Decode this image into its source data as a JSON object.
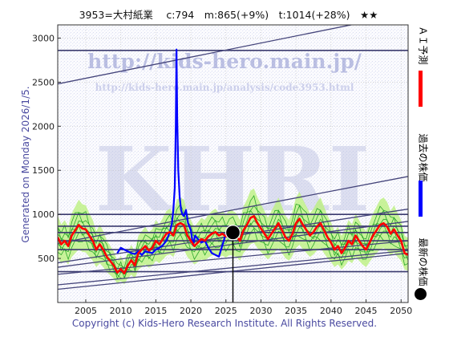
{
  "header": {
    "title": "3953=大村紙業　 c:794　m:865(+9%)　t:1014(+28%)　★★"
  },
  "side_text": "Generated on Monday 2026/1/5.",
  "footer": {
    "copyright": "Copyright (c) Kids-Hero Research Institute. All Rights Reserved."
  },
  "watermark": {
    "url": "http://kids-hero.main.jp/",
    "analysis_url": "http://kids-hero.main.jp/analysis/code3953.html",
    "logo": "KHRI"
  },
  "legend": [
    {
      "label": "ＡＩ予測",
      "color": "#ff0000",
      "marker": "line"
    },
    {
      "label": "過去の株価",
      "color": "#0000ff",
      "marker": "line"
    },
    {
      "label": "最新の株価",
      "color": "#000000",
      "marker": "dot"
    }
  ],
  "chart_data": {
    "type": "line",
    "xlim": [
      2001,
      2051
    ],
    "ylim": [
      0,
      3150
    ],
    "x_ticks": [
      2005,
      2010,
      2015,
      2020,
      2025,
      2030,
      2035,
      2040,
      2045,
      2050
    ],
    "y_ticks": [
      500,
      1000,
      1500,
      2000,
      2500,
      3000
    ],
    "grid": true,
    "latest": {
      "x": 2026.0,
      "y": 794
    },
    "horizontal_lines": [
      2860,
      1000,
      865,
      794,
      700,
      600,
      350
    ],
    "trend_lines": [
      {
        "x0": 2001,
        "y0": 2480,
        "x1": 2051,
        "y1": 3280
      },
      {
        "x0": 2001,
        "y0": 670,
        "x1": 2051,
        "y1": 1430
      },
      {
        "x0": 2001,
        "y0": 450,
        "x1": 2051,
        "y1": 1060
      },
      {
        "x0": 2001,
        "y0": 400,
        "x1": 2051,
        "y1": 920
      },
      {
        "x0": 2001,
        "y0": 320,
        "x1": 2051,
        "y1": 700
      },
      {
        "x0": 2001,
        "y0": 200,
        "x1": 2051,
        "y1": 590
      },
      {
        "x0": 2001,
        "y0": 150,
        "x1": 2051,
        "y1": 560
      }
    ],
    "series": [
      {
        "name": "過去の株価",
        "color": "#0000ff",
        "points": [
          [
            2009.5,
            560
          ],
          [
            2010,
            620
          ],
          [
            2010.5,
            600
          ],
          [
            2011,
            580
          ],
          [
            2011.5,
            560
          ],
          [
            2012,
            550
          ],
          [
            2012.5,
            580
          ],
          [
            2013,
            540
          ],
          [
            2013.5,
            580
          ],
          [
            2014,
            570
          ],
          [
            2014.5,
            560
          ],
          [
            2015,
            600
          ],
          [
            2015.5,
            620
          ],
          [
            2016,
            650
          ],
          [
            2016.5,
            700
          ],
          [
            2017,
            800
          ],
          [
            2017.3,
            900
          ],
          [
            2017.5,
            1050
          ],
          [
            2017.7,
            1300
          ],
          [
            2017.85,
            2000
          ],
          [
            2017.95,
            2870
          ],
          [
            2018.05,
            2100
          ],
          [
            2018.2,
            1500
          ],
          [
            2018.4,
            1200
          ],
          [
            2018.6,
            1050
          ],
          [
            2018.8,
            1000
          ],
          [
            2019,
            980
          ],
          [
            2019.3,
            1050
          ],
          [
            2019.6,
            900
          ],
          [
            2020,
            820
          ],
          [
            2020.3,
            650
          ],
          [
            2020.6,
            760
          ],
          [
            2021,
            720
          ],
          [
            2021.5,
            680
          ],
          [
            2022,
            700
          ],
          [
            2022.5,
            620
          ],
          [
            2023,
            560
          ],
          [
            2023.5,
            540
          ],
          [
            2024,
            520
          ],
          [
            2024.5,
            650
          ],
          [
            2025,
            780
          ],
          [
            2025.5,
            760
          ],
          [
            2026,
            794
          ]
        ]
      },
      {
        "name": "ＡＩ予測",
        "color": "#ff0000",
        "points": [
          [
            2001,
            740
          ],
          [
            2001.5,
            660
          ],
          [
            2002,
            700
          ],
          [
            2002.5,
            640
          ],
          [
            2003,
            760
          ],
          [
            2003.5,
            820
          ],
          [
            2004,
            880
          ],
          [
            2004.5,
            840
          ],
          [
            2005,
            830
          ],
          [
            2005.5,
            760
          ],
          [
            2006,
            700
          ],
          [
            2006.5,
            600
          ],
          [
            2007,
            660
          ],
          [
            2007.5,
            600
          ],
          [
            2008,
            520
          ],
          [
            2008.5,
            470
          ],
          [
            2009,
            420
          ],
          [
            2009.5,
            340
          ],
          [
            2010,
            380
          ],
          [
            2010.5,
            330
          ],
          [
            2011,
            420
          ],
          [
            2011.5,
            480
          ],
          [
            2012,
            420
          ],
          [
            2012.5,
            560
          ],
          [
            2013,
            600
          ],
          [
            2013.5,
            640
          ],
          [
            2014,
            590
          ],
          [
            2014.5,
            620
          ],
          [
            2015,
            700
          ],
          [
            2015.5,
            660
          ],
          [
            2016,
            720
          ],
          [
            2016.5,
            780
          ],
          [
            2017,
            800
          ],
          [
            2017.5,
            760
          ],
          [
            2018,
            880
          ],
          [
            2018.5,
            900
          ],
          [
            2019,
            880
          ],
          [
            2019.5,
            760
          ],
          [
            2020,
            700
          ],
          [
            2020.5,
            640
          ],
          [
            2021,
            680
          ],
          [
            2021.5,
            720
          ],
          [
            2022,
            700
          ],
          [
            2022.5,
            750
          ],
          [
            2023,
            780
          ],
          [
            2023.5,
            800
          ],
          [
            2024,
            760
          ],
          [
            2024.5,
            780
          ],
          [
            2025,
            750
          ],
          [
            2025.5,
            790
          ],
          [
            2026,
            780
          ],
          [
            2026.5,
            760
          ],
          [
            2027,
            700
          ],
          [
            2027.5,
            820
          ],
          [
            2028,
            880
          ],
          [
            2028.5,
            960
          ],
          [
            2029,
            980
          ],
          [
            2029.5,
            900
          ],
          [
            2030,
            840
          ],
          [
            2030.5,
            780
          ],
          [
            2031,
            720
          ],
          [
            2031.5,
            780
          ],
          [
            2032,
            840
          ],
          [
            2032.5,
            900
          ],
          [
            2033,
            820
          ],
          [
            2033.5,
            740
          ],
          [
            2034,
            700
          ],
          [
            2034.5,
            780
          ],
          [
            2035,
            900
          ],
          [
            2035.5,
            950
          ],
          [
            2036,
            880
          ],
          [
            2036.5,
            820
          ],
          [
            2037,
            760
          ],
          [
            2037.5,
            800
          ],
          [
            2038,
            860
          ],
          [
            2038.5,
            900
          ],
          [
            2039,
            820
          ],
          [
            2039.5,
            740
          ],
          [
            2040,
            680
          ],
          [
            2040.5,
            600
          ],
          [
            2041,
            640
          ],
          [
            2041.5,
            560
          ],
          [
            2042,
            620
          ],
          [
            2042.5,
            700
          ],
          [
            2043,
            660
          ],
          [
            2043.5,
            760
          ],
          [
            2044,
            700
          ],
          [
            2044.5,
            640
          ],
          [
            2045,
            600
          ],
          [
            2045.5,
            680
          ],
          [
            2046,
            760
          ],
          [
            2046.5,
            820
          ],
          [
            2047,
            880
          ],
          [
            2047.5,
            900
          ],
          [
            2048,
            860
          ],
          [
            2048.5,
            780
          ],
          [
            2049,
            830
          ],
          [
            2049.5,
            760
          ],
          [
            2050,
            700
          ],
          [
            2050.5,
            560
          ],
          [
            2051,
            540
          ]
        ]
      }
    ]
  }
}
